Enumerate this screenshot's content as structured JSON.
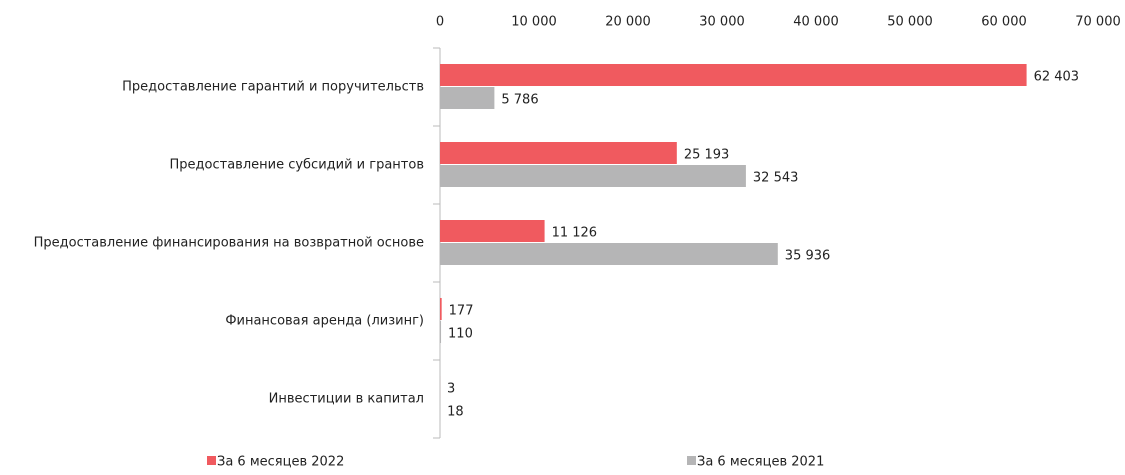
{
  "chart_data": {
    "type": "hbar",
    "categories": [
      "Предоставление гарантий и поручительств",
      "Предоставление субсидий и грантов",
      "Предоставление финансирования  на возвратной основе",
      "Финансовая аренда (лизинг)",
      "Инвестиции в капитал"
    ],
    "series": [
      {
        "name": "За 6 месяцев 2022",
        "color": "#f05a5f",
        "values": [
          62403,
          25193,
          11126,
          177,
          3
        ],
        "value_labels": [
          "62 403",
          "25 193",
          "11 126",
          "177",
          "3"
        ]
      },
      {
        "name": "За 6 месяцев 2021",
        "color": "#b5b5b6",
        "values": [
          5786,
          32543,
          35936,
          110,
          18
        ],
        "value_labels": [
          "5 786",
          "32 543",
          "35 936",
          "110",
          "18"
        ]
      }
    ],
    "xlim": [
      0,
      70000
    ],
    "xticks": [
      0,
      {
        "value": 10000,
        "label": "10 000"
      },
      {
        "value": 20000,
        "label": "20 000"
      },
      {
        "value": 30000,
        "label": "30 000"
      },
      {
        "value": 40000,
        "label": "40 000"
      },
      {
        "value": 50000,
        "label": "50 000"
      },
      {
        "value": 60000,
        "label": "60 000"
      },
      {
        "value": 70000,
        "label": "70 000"
      }
    ]
  }
}
